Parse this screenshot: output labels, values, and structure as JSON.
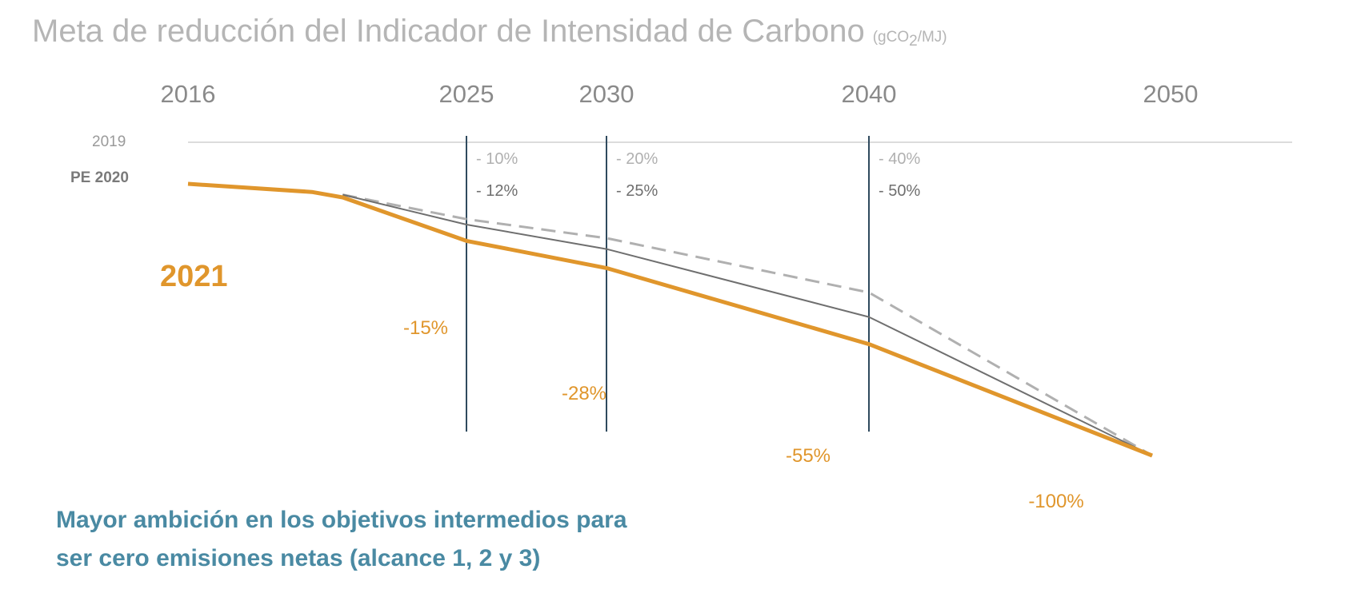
{
  "chart_data": {
    "type": "line",
    "title": "Meta de reducción del Indicador de Intensidad de Carbono",
    "unit_main": "(gCO",
    "unit_sub": "2",
    "unit_end": "/MJ)",
    "x_ticks": [
      "2016",
      "2025",
      "2030",
      "2040",
      "2050"
    ],
    "milestone_years": [
      2025,
      2030,
      2040
    ],
    "grid": false,
    "series": [
      {
        "name": "2019",
        "style": "dashed",
        "color": "#b0b0b0",
        "x": [
          2021,
          2025,
          2030,
          2040,
          2050
        ],
        "y": [
          96,
          87,
          80,
          60,
          0
        ],
        "targets": [
          "- 10%",
          "- 20%",
          "- 40%"
        ]
      },
      {
        "name": "PE 2020",
        "style": "solid",
        "color": "#6f6f6f",
        "x": [
          2021,
          2025,
          2030,
          2040,
          2050
        ],
        "y": [
          96,
          85,
          76,
          51,
          0
        ],
        "targets": [
          "- 12%",
          "- 25%",
          "- 50%"
        ]
      },
      {
        "name": "2021",
        "style": "solid",
        "color": "#e0962c",
        "x": [
          2016,
          2020,
          2021,
          2025,
          2030,
          2040,
          2050
        ],
        "y": [
          100,
          97,
          95,
          79,
          69,
          41,
          0
        ],
        "targets": [
          "-15%",
          "-28%",
          "-55%",
          "-100%"
        ]
      }
    ],
    "milestone_line_color": "#2f4a5e",
    "note": [
      "Mayor ambición en los objetivos intermedios para",
      "ser cero emisiones netas (alcance 1, 2 y 3)"
    ],
    "note_color": "#4a8aa3"
  }
}
